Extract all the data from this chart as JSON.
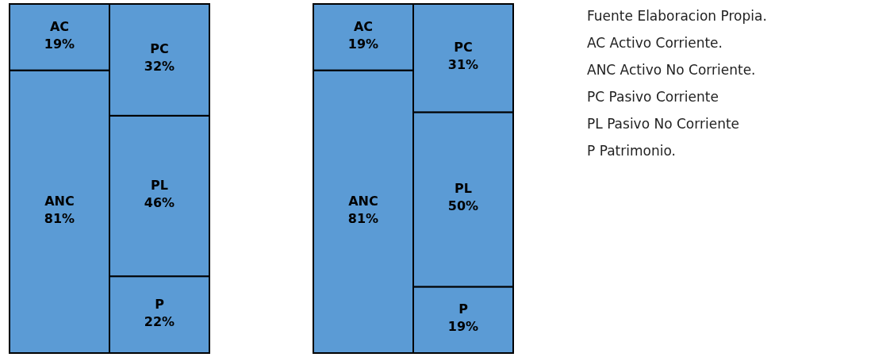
{
  "chart_data": [
    {
      "type": "bar",
      "stacked": true,
      "categories": [
        null,
        null
      ],
      "ylim": [
        0,
        100
      ],
      "tick_labels": false,
      "series": [
        {
          "name": "ANC",
          "color": "#5b9bd5",
          "values": [
            81,
            null
          ],
          "value_labels": [
            "81%",
            null
          ]
        },
        {
          "name": "P",
          "color": "#5b9bd5",
          "values": [
            null,
            22
          ],
          "value_labels": [
            null,
            "22%"
          ]
        },
        {
          "name": "PL",
          "color": "#5b9bd5",
          "values": [
            null,
            46
          ],
          "value_labels": [
            null,
            "46%"
          ]
        },
        {
          "name": "AC",
          "color": "#5b9bd5",
          "values": [
            19,
            null
          ],
          "value_labels": [
            "19%",
            null
          ]
        },
        {
          "name": "PC",
          "color": "#5b9bd5",
          "values": [
            null,
            32
          ],
          "value_labels": [
            null,
            "32%"
          ]
        }
      ]
    },
    {
      "type": "bar",
      "stacked": true,
      "categories": [
        null,
        null
      ],
      "ylim": [
        0,
        100
      ],
      "tick_labels": false,
      "series": [
        {
          "name": "ANC",
          "color": "#5b9bd5",
          "values": [
            81,
            null
          ],
          "value_labels": [
            "81%",
            null
          ]
        },
        {
          "name": "P",
          "color": "#5b9bd5",
          "values": [
            null,
            19
          ],
          "value_labels": [
            null,
            "19%"
          ]
        },
        {
          "name": "PL",
          "color": "#5b9bd5",
          "values": [
            null,
            50
          ],
          "value_labels": [
            null,
            "50%"
          ]
        },
        {
          "name": "AC",
          "color": "#5b9bd5",
          "values": [
            19,
            null
          ],
          "value_labels": [
            "19%",
            null
          ]
        },
        {
          "name": "PC",
          "color": "#5b9bd5",
          "values": [
            null,
            31
          ],
          "value_labels": [
            null,
            "31%"
          ]
        }
      ]
    },
    {
      "type": "other",
      "annotations": [
        "Fuente Elaboracion Propia.",
        "AC Activo Corriente.",
        "ANC Activo No Corriente.",
        "PC Pasivo Corriente",
        "PL Pasivo No Corriente",
        "P  Patrimonio."
      ]
    }
  ]
}
